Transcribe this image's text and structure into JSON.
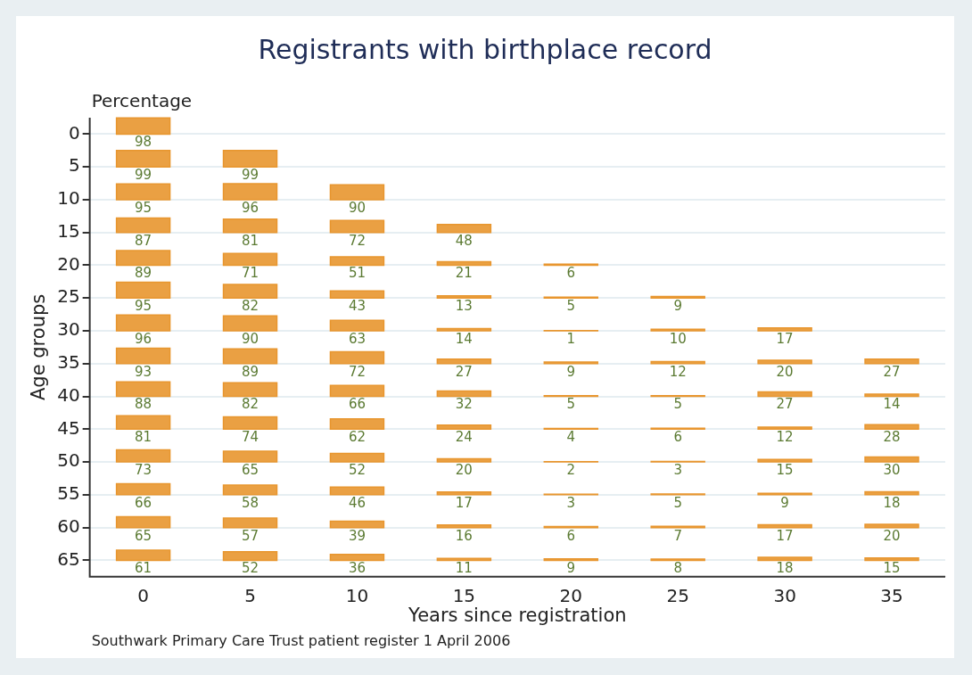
{
  "chart_data": {
    "type": "heatmap",
    "title": "Registrants with birthplace record",
    "xlabel": "Years since registration",
    "ylabel": "Age groups",
    "annotations": [
      "Percentage",
      "Southwark Primary Care Trust patient register 1 April 2006"
    ],
    "categories": [
      "0",
      "5",
      "10",
      "15",
      "20",
      "25",
      "30",
      "35"
    ],
    "y_categories": [
      "0",
      "5",
      "10",
      "15",
      "20",
      "25",
      "30",
      "35",
      "40",
      "45",
      "50",
      "55",
      "60",
      "65"
    ],
    "color": "#e8962f",
    "data_labels": true,
    "grid": "y",
    "cells": [
      [
        98,
        null,
        null,
        null,
        null,
        null,
        null,
        null
      ],
      [
        99,
        99,
        null,
        null,
        null,
        null,
        null,
        null
      ],
      [
        95,
        96,
        90,
        null,
        null,
        null,
        null,
        null
      ],
      [
        87,
        81,
        72,
        48,
        null,
        null,
        null,
        null
      ],
      [
        89,
        71,
        51,
        21,
        6,
        null,
        null,
        null
      ],
      [
        95,
        82,
        43,
        13,
        5,
        9,
        null,
        null
      ],
      [
        96,
        90,
        63,
        14,
        1,
        10,
        17,
        null
      ],
      [
        93,
        89,
        72,
        27,
        9,
        12,
        20,
        27
      ],
      [
        88,
        82,
        66,
        32,
        5,
        5,
        27,
        14
      ],
      [
        81,
        74,
        62,
        24,
        4,
        6,
        12,
        28
      ],
      [
        73,
        65,
        52,
        20,
        2,
        3,
        15,
        30
      ],
      [
        66,
        58,
        46,
        17,
        3,
        5,
        9,
        18
      ],
      [
        65,
        57,
        39,
        16,
        6,
        7,
        17,
        20
      ],
      [
        61,
        52,
        36,
        11,
        9,
        8,
        18,
        15
      ]
    ]
  }
}
